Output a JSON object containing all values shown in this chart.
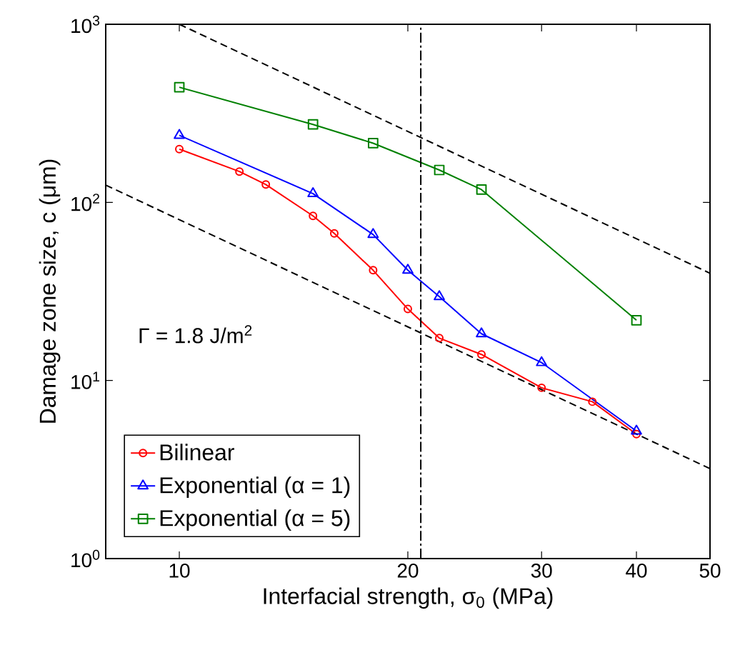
{
  "chart_data": {
    "type": "line",
    "xlabel": "Interfacial strength, σ$_{0}$ (MPa)",
    "ylabel": "Damage zone size, c (μm)",
    "log": "xy",
    "xlim": [
      8,
      50
    ],
    "ylim": [
      1,
      1000
    ],
    "xticks": [
      10,
      20,
      30,
      40,
      50
    ],
    "yticks": [
      {
        "value": 1,
        "label": "10$^{0}$"
      },
      {
        "value": 10,
        "label": "10$^{1}$"
      },
      {
        "value": 100,
        "label": "10$^{2}$"
      },
      {
        "value": 1000,
        "label": "10$^{3}$"
      }
    ],
    "legend": "bottom left",
    "grid": false,
    "series": [
      {
        "name": "Bilinear",
        "color": "#ff0000",
        "marker": "circle",
        "x": [
          10,
          12,
          13,
          15,
          16,
          18,
          20,
          22,
          25,
          30,
          35,
          40
        ],
        "values": [
          199,
          149,
          126,
          84,
          67,
          41.6,
          25.2,
          17.3,
          14,
          9.1,
          7.6,
          5.0
        ]
      },
      {
        "name": "Exponential (α = 1)",
        "color": "#0000ff",
        "marker": "triangle",
        "x": [
          10,
          15,
          18,
          20,
          22,
          25,
          30,
          40
        ],
        "values": [
          238,
          112,
          66,
          41.6,
          29.6,
          18.3,
          12.6,
          5.2
        ]
      },
      {
        "name": "Exponential (α = 5)",
        "color": "#008000",
        "marker": "square",
        "x": [
          10,
          15,
          18,
          22,
          25,
          40
        ],
        "values": [
          443,
          274,
          215,
          152,
          118,
          21.8
        ]
      },
      {
        "type": "line",
        "color": "#000000",
        "line_style": "dashed",
        "marker": "none",
        "x": [
          10,
          50
        ],
        "values": [
          1000,
          40
        ]
      },
      {
        "type": "line",
        "color": "#000000",
        "line_style": "dashed",
        "marker": "none",
        "x": [
          8,
          50
        ],
        "values": [
          125,
          3.2
        ]
      }
    ],
    "ref_lines": [
      {
        "axis": "x",
        "value": 20.8,
        "color": "#000000",
        "line_style": "dashdot"
      }
    ],
    "annotations": [
      "Γ = 1.8 J/m$^{2}$"
    ]
  }
}
